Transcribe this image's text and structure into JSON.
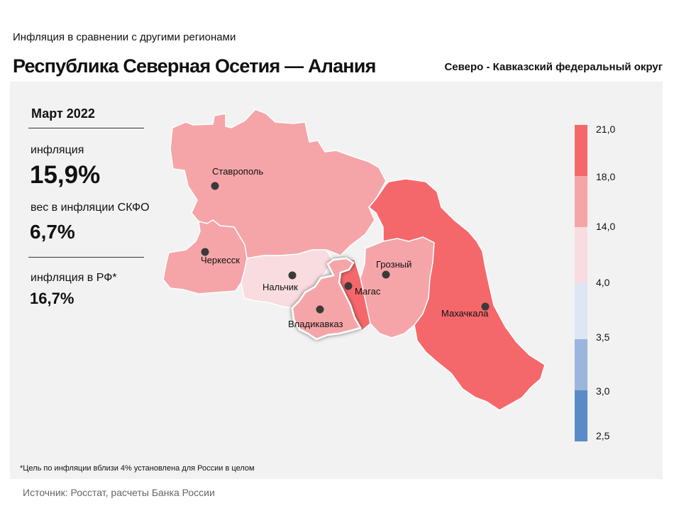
{
  "header": {
    "subtitle": "Инфляция  в сравнении  с другими  регионами",
    "title": "Республика Северная Осетия — Алания",
    "district": "Северо - Кавказский федеральный округ"
  },
  "stats": {
    "period": "Март 2022",
    "inflation_label": "инфляция",
    "inflation_value": "15,9%",
    "weight_label": "вес в инфляции  СКФО",
    "weight_value": "6,7%",
    "rf_label": "инфляция  в РФ*",
    "rf_value": "16,7%"
  },
  "footnote": "*Цель по инфляции вблизи 4% установлена для России в целом",
  "source": "Источник: Росстат, расчеты Банка России",
  "colors": {
    "panel": "#f2f2f2",
    "band_21_18": "#f4686b",
    "band_18_14": "#f5a5a8",
    "band_14_4": "#f8dcdf",
    "band_4_35": "#dce6f4",
    "band_35_3": "#9ab6dc",
    "band_3_25": "#5b8ac8"
  },
  "legend": {
    "ticks": [
      "21,0",
      "18,0",
      "14,0",
      "4,0",
      "3,5",
      "3,0",
      "2,5"
    ]
  },
  "cities": {
    "stavropol": "Ставрополь",
    "cherkessk": "Черкесск",
    "nalchik": "Нальчик",
    "grozny": "Грозный",
    "magas": "Магас",
    "vladikavkaz": "Владикавказ",
    "makhachkala": "Махачкала"
  }
}
